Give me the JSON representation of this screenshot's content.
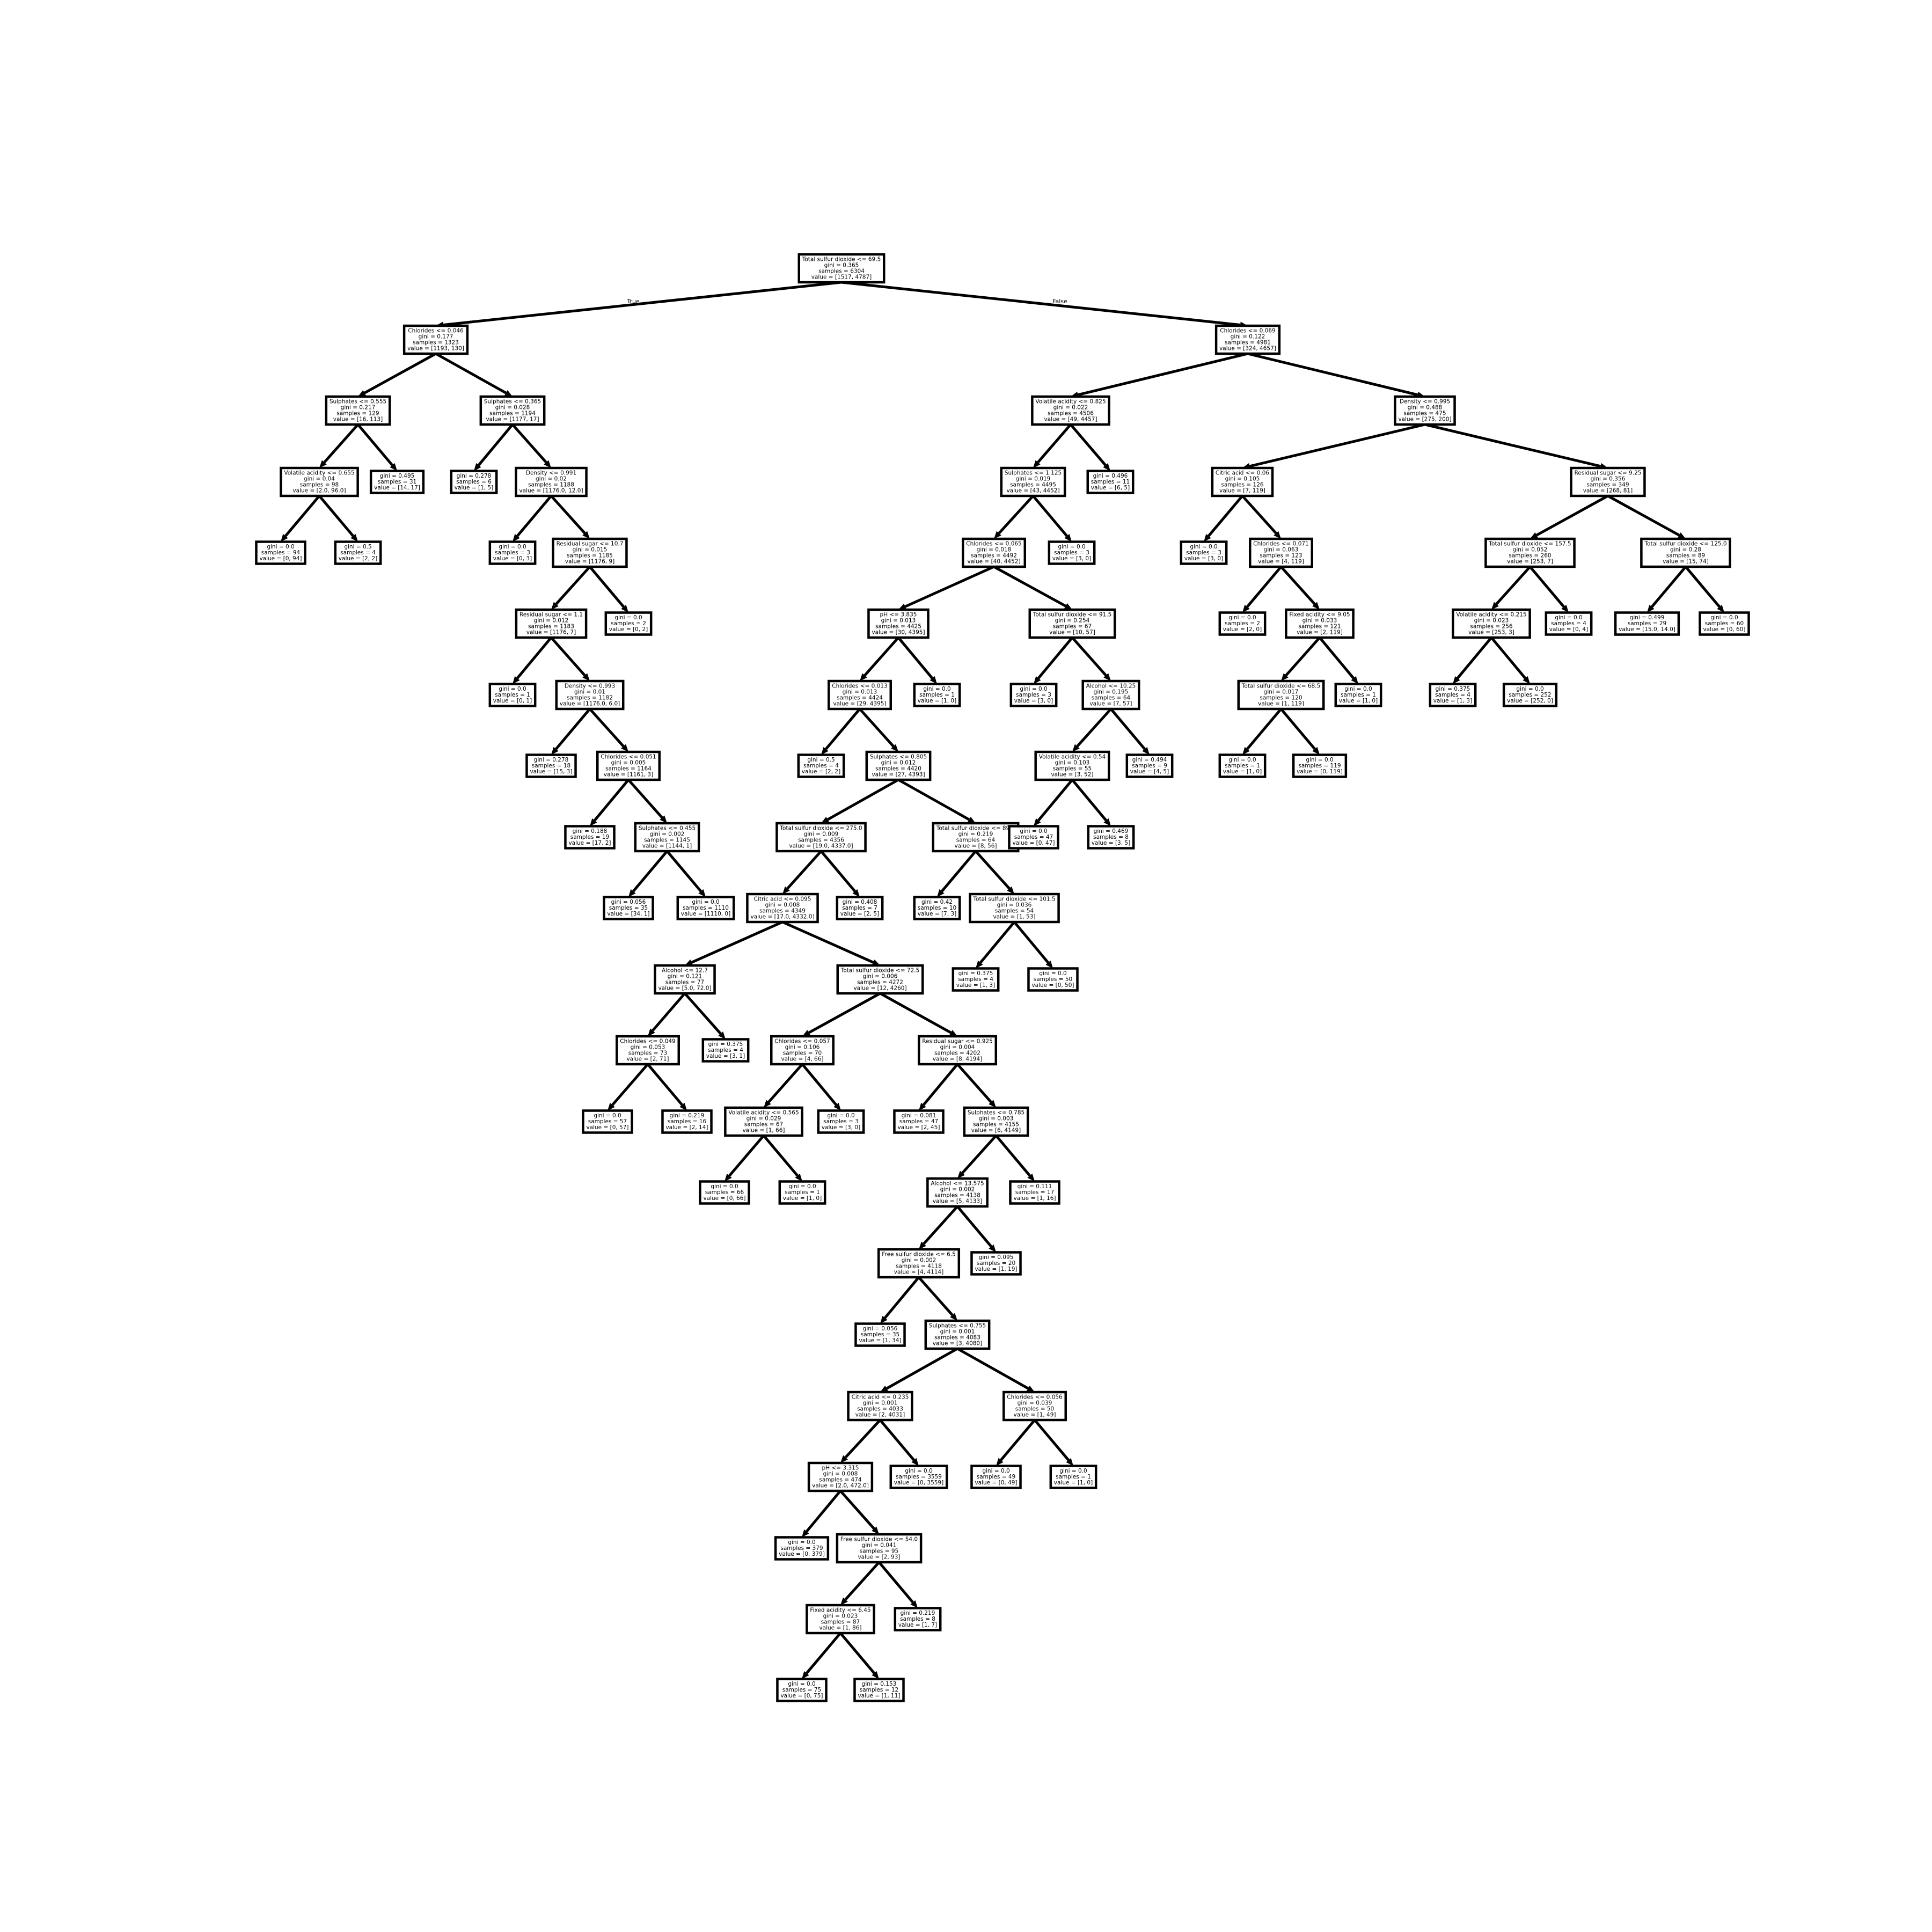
{
  "branch_labels": {
    "true": "True",
    "false": "False"
  },
  "nodes": [
    {
      "id": 0,
      "parent": null,
      "lines": [
        "Total sulfur dioxide <= 69.5",
        "gini = 0.365",
        "samples = 6304",
        "value = [1517, 4787]"
      ]
    },
    {
      "id": 1,
      "parent": 0,
      "lines": [
        "Chlorides <= 0.046",
        "gini = 0.177",
        "samples = 1323",
        "value = [1193, 130]"
      ]
    },
    {
      "id": 2,
      "parent": 1,
      "lines": [
        "Sulphates <= 0.555",
        "gini = 0.217",
        "samples = 129",
        "value = [16, 113]"
      ]
    },
    {
      "id": 3,
      "parent": 2,
      "lines": [
        "Volatile acidity <= 0.655",
        "gini = 0.04",
        "samples = 98",
        "value = [2.0, 96.0]"
      ]
    },
    {
      "id": 4,
      "parent": 3,
      "lines": [
        "gini = 0.0",
        "samples = 94",
        "value = [0, 94]"
      ]
    },
    {
      "id": 5,
      "parent": 3,
      "lines": [
        "gini = 0.5",
        "samples = 4",
        "value = [2, 2]"
      ]
    },
    {
      "id": 6,
      "parent": 2,
      "lines": [
        "gini = 0.495",
        "samples = 31",
        "value = [14, 17]"
      ]
    },
    {
      "id": 7,
      "parent": 1,
      "lines": [
        "Sulphates <= 0.365",
        "gini = 0.028",
        "samples = 1194",
        "value = [1177, 17]"
      ]
    },
    {
      "id": 8,
      "parent": 7,
      "lines": [
        "gini = 0.278",
        "samples = 6",
        "value = [1, 5]"
      ]
    },
    {
      "id": 9,
      "parent": 7,
      "lines": [
        "Density <= 0.991",
        "gini = 0.02",
        "samples = 1188",
        "value = [1176.0, 12.0]"
      ]
    },
    {
      "id": 10,
      "parent": 9,
      "lines": [
        "gini = 0.0",
        "samples = 3",
        "value = [0, 3]"
      ]
    },
    {
      "id": 11,
      "parent": 9,
      "lines": [
        "Residual sugar <= 10.7",
        "gini = 0.015",
        "samples = 1185",
        "value = [1176, 9]"
      ]
    },
    {
      "id": 12,
      "parent": 11,
      "lines": [
        "Residual sugar <= 1.1",
        "gini = 0.012",
        "samples = 1183",
        "value = [1176, 7]"
      ]
    },
    {
      "id": 13,
      "parent": 12,
      "lines": [
        "gini = 0.0",
        "samples = 1",
        "value = [0, 1]"
      ]
    },
    {
      "id": 14,
      "parent": 12,
      "lines": [
        "Density <= 0.993",
        "gini = 0.01",
        "samples = 1182",
        "value = [1176.0, 6.0]"
      ]
    },
    {
      "id": 15,
      "parent": 14,
      "lines": [
        "gini = 0.278",
        "samples = 18",
        "value = [15, 3]"
      ]
    },
    {
      "id": 16,
      "parent": 14,
      "lines": [
        "Chlorides <= 0.051",
        "gini = 0.005",
        "samples = 1164",
        "value = [1161, 3]"
      ]
    },
    {
      "id": 17,
      "parent": 16,
      "lines": [
        "gini = 0.188",
        "samples = 19",
        "value = [17, 2]"
      ]
    },
    {
      "id": 18,
      "parent": 16,
      "lines": [
        "Sulphates <= 0.455",
        "gini = 0.002",
        "samples = 1145",
        "value = [1144, 1]"
      ]
    },
    {
      "id": 19,
      "parent": 18,
      "lines": [
        "gini = 0.056",
        "samples = 35",
        "value = [34, 1]"
      ]
    },
    {
      "id": 20,
      "parent": 18,
      "lines": [
        "gini = 0.0",
        "samples = 1110",
        "value = [1110, 0]"
      ]
    },
    {
      "id": 21,
      "parent": 11,
      "lines": [
        "gini = 0.0",
        "samples = 2",
        "value = [0, 2]"
      ]
    },
    {
      "id": 22,
      "parent": 0,
      "lines": [
        "Chlorides <= 0.069",
        "gini = 0.122",
        "samples = 4981",
        "value = [324, 4657]"
      ]
    },
    {
      "id": 23,
      "parent": 22,
      "lines": [
        "Volatile acidity <= 0.825",
        "gini = 0.022",
        "samples = 4506",
        "value = [49, 4457]"
      ]
    },
    {
      "id": 24,
      "parent": 23,
      "lines": [
        "Sulphates <= 1.125",
        "gini = 0.019",
        "samples = 4495",
        "value = [43, 4452]"
      ]
    },
    {
      "id": 25,
      "parent": 24,
      "lines": [
        "Chlorides <= 0.065",
        "gini = 0.018",
        "samples = 4492",
        "value = [40, 4452]"
      ]
    },
    {
      "id": 26,
      "parent": 25,
      "lines": [
        "pH <= 3.835",
        "gini = 0.013",
        "samples = 4425",
        "value = [30, 4395]"
      ]
    },
    {
      "id": 27,
      "parent": 26,
      "lines": [
        "Chlorides <= 0.013",
        "gini = 0.013",
        "samples = 4424",
        "value = [29, 4395]"
      ]
    },
    {
      "id": 28,
      "parent": 27,
      "lines": [
        "gini = 0.5",
        "samples = 4",
        "value = [2, 2]"
      ]
    },
    {
      "id": 29,
      "parent": 27,
      "lines": [
        "Sulphates <= 0.805",
        "gini = 0.012",
        "samples = 4420",
        "value = [27, 4393]"
      ]
    },
    {
      "id": 30,
      "parent": 29,
      "lines": [
        "Total sulfur dioxide <= 275.0",
        "gini = 0.009",
        "samples = 4356",
        "value = [19.0, 4337.0]"
      ]
    },
    {
      "id": 31,
      "parent": 30,
      "lines": [
        "Citric acid <= 0.095",
        "gini = 0.008",
        "samples = 4349",
        "value = [17.0, 4332.0]"
      ]
    },
    {
      "id": 32,
      "parent": 31,
      "lines": [
        "Alcohol <= 12.7",
        "gini = 0.121",
        "samples = 77",
        "value = [5.0, 72.0]"
      ]
    },
    {
      "id": 33,
      "parent": 32,
      "lines": [
        "Chlorides <= 0.049",
        "gini = 0.053",
        "samples = 73",
        "value = [2, 71]"
      ]
    },
    {
      "id": 34,
      "parent": 33,
      "lines": [
        "gini = 0.0",
        "samples = 57",
        "value = [0, 57]"
      ]
    },
    {
      "id": 35,
      "parent": 33,
      "lines": [
        "gini = 0.219",
        "samples = 16",
        "value = [2, 14]"
      ]
    },
    {
      "id": 36,
      "parent": 32,
      "lines": [
        "gini = 0.375",
        "samples = 4",
        "value = [3, 1]"
      ]
    },
    {
      "id": 37,
      "parent": 31,
      "lines": [
        "Total sulfur dioxide <= 72.5",
        "gini = 0.006",
        "samples = 4272",
        "value = [12, 4260]"
      ]
    },
    {
      "id": 38,
      "parent": 37,
      "lines": [
        "Chlorides <= 0.057",
        "gini = 0.106",
        "samples = 70",
        "value = [4, 66]"
      ]
    },
    {
      "id": 39,
      "parent": 38,
      "lines": [
        "Volatile acidity <= 0.565",
        "gini = 0.029",
        "samples = 67",
        "value = [1, 66]"
      ]
    },
    {
      "id": 40,
      "parent": 39,
      "lines": [
        "gini = 0.0",
        "samples = 66",
        "value = [0, 66]"
      ]
    },
    {
      "id": 41,
      "parent": 39,
      "lines": [
        "gini = 0.0",
        "samples = 1",
        "value = [1, 0]"
      ]
    },
    {
      "id": 42,
      "parent": 38,
      "lines": [
        "gini = 0.0",
        "samples = 3",
        "value = [3, 0]"
      ]
    },
    {
      "id": 43,
      "parent": 37,
      "lines": [
        "Residual sugar <= 0.925",
        "gini = 0.004",
        "samples = 4202",
        "value = [8, 4194]"
      ]
    },
    {
      "id": 44,
      "parent": 43,
      "lines": [
        "gini = 0.081",
        "samples = 47",
        "value = [2, 45]"
      ]
    },
    {
      "id": 45,
      "parent": 43,
      "lines": [
        "Sulphates <= 0.785",
        "gini = 0.003",
        "samples = 4155",
        "value = [6, 4149]"
      ]
    },
    {
      "id": 46,
      "parent": 45,
      "lines": [
        "Alcohol <= 13.575",
        "gini = 0.002",
        "samples = 4138",
        "value = [5, 4133]"
      ]
    },
    {
      "id": 47,
      "parent": 46,
      "lines": [
        "Free sulfur dioxide <= 6.5",
        "gini = 0.002",
        "samples = 4118",
        "value = [4, 4114]"
      ]
    },
    {
      "id": 48,
      "parent": 47,
      "lines": [
        "gini = 0.056",
        "samples = 35",
        "value = [1, 34]"
      ]
    },
    {
      "id": 49,
      "parent": 47,
      "lines": [
        "Sulphates <= 0.755",
        "gini = 0.001",
        "samples = 4083",
        "value = [3, 4080]"
      ]
    },
    {
      "id": 50,
      "parent": 49,
      "lines": [
        "Citric acid <= 0.235",
        "gini = 0.001",
        "samples = 4033",
        "value = [2, 4031]"
      ]
    },
    {
      "id": 51,
      "parent": 50,
      "lines": [
        "pH <= 3.315",
        "gini = 0.008",
        "samples = 474",
        "value = [2.0, 472.0]"
      ]
    },
    {
      "id": 52,
      "parent": 51,
      "lines": [
        "gini = 0.0",
        "samples = 379",
        "value = [0, 379]"
      ]
    },
    {
      "id": 53,
      "parent": 51,
      "lines": [
        "Free sulfur dioxide <= 54.0",
        "gini = 0.041",
        "samples = 95",
        "value = [2, 93]"
      ]
    },
    {
      "id": 54,
      "parent": 53,
      "lines": [
        "Fixed acidity <= 6.45",
        "gini = 0.023",
        "samples = 87",
        "value = [1, 86]"
      ]
    },
    {
      "id": 55,
      "parent": 54,
      "lines": [
        "gini = 0.0",
        "samples = 75",
        "value = [0, 75]"
      ]
    },
    {
      "id": 56,
      "parent": 54,
      "lines": [
        "gini = 0.153",
        "samples = 12",
        "value = [1, 11]"
      ]
    },
    {
      "id": 57,
      "parent": 53,
      "lines": [
        "gini = 0.219",
        "samples = 8",
        "value = [1, 7]"
      ]
    },
    {
      "id": 58,
      "parent": 50,
      "lines": [
        "gini = 0.0",
        "samples = 3559",
        "value = [0, 3559]"
      ]
    },
    {
      "id": 59,
      "parent": 49,
      "lines": [
        "Chlorides <= 0.056",
        "gini = 0.039",
        "samples = 50",
        "value = [1, 49]"
      ]
    },
    {
      "id": 60,
      "parent": 59,
      "lines": [
        "gini = 0.0",
        "samples = 49",
        "value = [0, 49]"
      ]
    },
    {
      "id": 61,
      "parent": 59,
      "lines": [
        "gini = 0.0",
        "samples = 1",
        "value = [1, 0]"
      ]
    },
    {
      "id": 62,
      "parent": 46,
      "lines": [
        "gini = 0.095",
        "samples = 20",
        "value = [1, 19]"
      ]
    },
    {
      "id": 63,
      "parent": 45,
      "lines": [
        "gini = 0.111",
        "samples = 17",
        "value = [1, 16]"
      ]
    },
    {
      "id": 64,
      "parent": 30,
      "lines": [
        "gini = 0.408",
        "samples = 7",
        "value = [2, 5]"
      ]
    },
    {
      "id": 65,
      "parent": 29,
      "lines": [
        "Total sulfur dioxide <= 89.5",
        "gini = 0.219",
        "samples = 64",
        "value = [8, 56]"
      ]
    },
    {
      "id": 66,
      "parent": 65,
      "lines": [
        "gini = 0.42",
        "samples = 10",
        "value = [7, 3]"
      ]
    },
    {
      "id": 67,
      "parent": 65,
      "lines": [
        "Total sulfur dioxide <= 101.5",
        "gini = 0.036",
        "samples = 54",
        "value = [1, 53]"
      ]
    },
    {
      "id": 68,
      "parent": 67,
      "lines": [
        "gini = 0.375",
        "samples = 4",
        "value = [1, 3]"
      ]
    },
    {
      "id": 69,
      "parent": 67,
      "lines": [
        "gini = 0.0",
        "samples = 50",
        "value = [0, 50]"
      ]
    },
    {
      "id": 70,
      "parent": 26,
      "lines": [
        "gini = 0.0",
        "samples = 1",
        "value = [1, 0]"
      ]
    },
    {
      "id": 71,
      "parent": 25,
      "lines": [
        "Total sulfur dioxide <= 91.5",
        "gini = 0.254",
        "samples = 67",
        "value = [10, 57]"
      ]
    },
    {
      "id": 72,
      "parent": 71,
      "lines": [
        "gini = 0.0",
        "samples = 3",
        "value = [3, 0]"
      ]
    },
    {
      "id": 73,
      "parent": 71,
      "lines": [
        "Alcohol <= 10.25",
        "gini = 0.195",
        "samples = 64",
        "value = [7, 57]"
      ]
    },
    {
      "id": 74,
      "parent": 73,
      "lines": [
        "Volatile acidity <= 0.54",
        "gini = 0.103",
        "samples = 55",
        "value = [3, 52]"
      ]
    },
    {
      "id": 75,
      "parent": 74,
      "lines": [
        "gini = 0.0",
        "samples = 47",
        "value = [0, 47]"
      ]
    },
    {
      "id": 76,
      "parent": 74,
      "lines": [
        "gini = 0.469",
        "samples = 8",
        "value = [3, 5]"
      ]
    },
    {
      "id": 77,
      "parent": 73,
      "lines": [
        "gini = 0.494",
        "samples = 9",
        "value = [4, 5]"
      ]
    },
    {
      "id": 78,
      "parent": 24,
      "lines": [
        "gini = 0.0",
        "samples = 3",
        "value = [3, 0]"
      ]
    },
    {
      "id": 79,
      "parent": 23,
      "lines": [
        "gini = 0.496",
        "samples = 11",
        "value = [6, 5]"
      ]
    },
    {
      "id": 80,
      "parent": 22,
      "lines": [
        "Density <= 0.995",
        "gini = 0.488",
        "samples = 475",
        "value = [275, 200]"
      ]
    },
    {
      "id": 81,
      "parent": 80,
      "lines": [
        "Citric acid <= 0.06",
        "gini = 0.105",
        "samples = 126",
        "value = [7, 119]"
      ]
    },
    {
      "id": 82,
      "parent": 81,
      "lines": [
        "gini = 0.0",
        "samples = 3",
        "value = [3, 0]"
      ]
    },
    {
      "id": 83,
      "parent": 81,
      "lines": [
        "Chlorides <= 0.071",
        "gini = 0.063",
        "samples = 123",
        "value = [4, 119]"
      ]
    },
    {
      "id": 84,
      "parent": 83,
      "lines": [
        "gini = 0.0",
        "samples = 2",
        "value = [2, 0]"
      ]
    },
    {
      "id": 85,
      "parent": 83,
      "lines": [
        "Fixed acidity <= 9.05",
        "gini = 0.033",
        "samples = 121",
        "value = [2, 119]"
      ]
    },
    {
      "id": 86,
      "parent": 85,
      "lines": [
        "Total sulfur dioxide <= 68.5",
        "gini = 0.017",
        "samples = 120",
        "value = [1, 119]"
      ]
    },
    {
      "id": 87,
      "parent": 86,
      "lines": [
        "gini = 0.0",
        "samples = 1",
        "value = [1, 0]"
      ]
    },
    {
      "id": 88,
      "parent": 86,
      "lines": [
        "gini = 0.0",
        "samples = 119",
        "value = [0, 119]"
      ]
    },
    {
      "id": 89,
      "parent": 85,
      "lines": [
        "gini = 0.0",
        "samples = 1",
        "value = [1, 0]"
      ]
    },
    {
      "id": 90,
      "parent": 80,
      "lines": [
        "Residual sugar <= 9.25",
        "gini = 0.356",
        "samples = 349",
        "value = [268, 81]"
      ]
    },
    {
      "id": 91,
      "parent": 90,
      "lines": [
        "Total sulfur dioxide <= 157.5",
        "gini = 0.052",
        "samples = 260",
        "value = [253, 7]"
      ]
    },
    {
      "id": 92,
      "parent": 91,
      "lines": [
        "Volatile acidity <= 0.215",
        "gini = 0.023",
        "samples = 256",
        "value = [253, 3]"
      ]
    },
    {
      "id": 93,
      "parent": 92,
      "lines": [
        "gini = 0.375",
        "samples = 4",
        "value = [1, 3]"
      ]
    },
    {
      "id": 94,
      "parent": 92,
      "lines": [
        "gini = 0.0",
        "samples = 252",
        "value = [252, 0]"
      ]
    },
    {
      "id": 95,
      "parent": 91,
      "lines": [
        "gini = 0.0",
        "samples = 4",
        "value = [0, 4]"
      ]
    },
    {
      "id": 96,
      "parent": 90,
      "lines": [
        "Total sulfur dioxide <= 125.0",
        "gini = 0.28",
        "samples = 89",
        "value = [15, 74]"
      ]
    },
    {
      "id": 97,
      "parent": 96,
      "lines": [
        "gini = 0.499",
        "samples = 29",
        "value = [15.0, 14.0]"
      ]
    },
    {
      "id": 98,
      "parent": 96,
      "lines": [
        "gini = 0.0",
        "samples = 60",
        "value = [0, 60]"
      ]
    }
  ]
}
